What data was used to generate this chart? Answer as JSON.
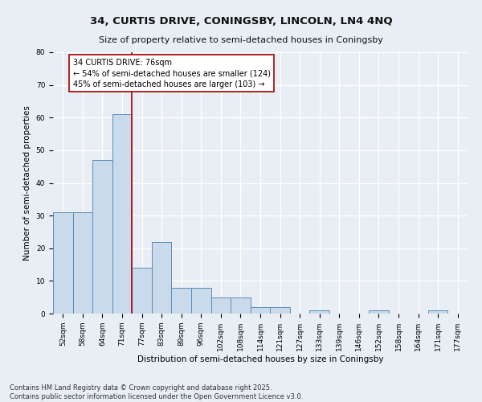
{
  "title1": "34, CURTIS DRIVE, CONINGSBY, LINCOLN, LN4 4NQ",
  "title2": "Size of property relative to semi-detached houses in Coningsby",
  "xlabel": "Distribution of semi-detached houses by size in Coningsby",
  "ylabel": "Number of semi-detached properties",
  "categories": [
    "52sqm",
    "58sqm",
    "64sqm",
    "71sqm",
    "77sqm",
    "83sqm",
    "89sqm",
    "96sqm",
    "102sqm",
    "108sqm",
    "114sqm",
    "121sqm",
    "127sqm",
    "133sqm",
    "139sqm",
    "146sqm",
    "152sqm",
    "158sqm",
    "164sqm",
    "171sqm",
    "177sqm"
  ],
  "values": [
    31,
    31,
    47,
    61,
    14,
    22,
    8,
    8,
    5,
    5,
    2,
    2,
    0,
    1,
    0,
    0,
    1,
    0,
    0,
    1,
    0
  ],
  "bar_color": "#c9daea",
  "bar_edge_color": "#5b8db8",
  "vline_x_index": 3.5,
  "vline_color": "#aa0000",
  "annotation_text": "34 CURTIS DRIVE: 76sqm\n← 54% of semi-detached houses are smaller (124)\n45% of semi-detached houses are larger (103) →",
  "annotation_box_facecolor": "#ffffff",
  "annotation_border_color": "#aa0000",
  "ylim": [
    0,
    80
  ],
  "yticks": [
    0,
    10,
    20,
    30,
    40,
    50,
    60,
    70,
    80
  ],
  "footnote": "Contains HM Land Registry data © Crown copyright and database right 2025.\nContains public sector information licensed under the Open Government Licence v3.0.",
  "background_color": "#e8eef4",
  "plot_bg_color": "#e8eef4",
  "grid_color": "#ffffff",
  "title_fontsize": 9.5,
  "subtitle_fontsize": 8,
  "tick_fontsize": 6.5,
  "axis_label_fontsize": 7.5,
  "annotation_fontsize": 7,
  "footnote_fontsize": 6
}
